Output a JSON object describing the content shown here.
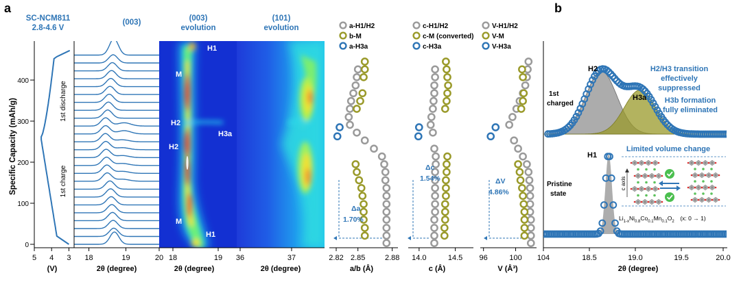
{
  "figure": {
    "panel_a_label": "a",
    "panel_b_label": "b",
    "sample_name": "SC-NCM811",
    "voltage_window": "2.8-4.6 V",
    "stack_title": "(003)",
    "map003_title_line1": "(003)",
    "map003_title_line2": "evolution",
    "map101_title_line1": "(101)",
    "map101_title_line2": "evolution",
    "y_axis_label": "Specific Capacity (mAh/g)",
    "first_charge_label": "1st charge",
    "first_discharge_label": "1st discharge",
    "phase_labels": {
      "h1_top": "H1",
      "m_upper": "M",
      "h2_upper": "H2",
      "h3a": "H3a",
      "h2_lower": "H2",
      "m_lower": "M",
      "h1_bottom": "H1"
    }
  },
  "chart_data": [
    {
      "id": "voltage-profile",
      "type": "line",
      "xlabel": "(V)",
      "x_ticks": [
        "5",
        "4",
        "3"
      ],
      "xlim": [
        5,
        2.7
      ],
      "ylim": [
        -5,
        480
      ],
      "y_ticks": [
        0,
        100,
        200,
        300,
        400
      ],
      "note": "voltage vs specific capacity, first charge and discharge"
    },
    {
      "id": "xrd-stack-003",
      "type": "line",
      "xlabel": "2θ (degree)",
      "x_ticks": [
        "18",
        "19"
      ],
      "xlim": [
        17.6,
        19.9
      ],
      "n_patterns": 25,
      "capacity_spacing": 19.2
    },
    {
      "id": "contour-003",
      "type": "heatmap",
      "xlabel": "2θ (degree)",
      "x_ticks": [
        "20",
        "18",
        "19"
      ],
      "xlim": [
        17.6,
        19.7
      ]
    },
    {
      "id": "contour-101",
      "type": "heatmap",
      "xlabel": "2θ (degree)",
      "x_ticks": [
        "36",
        "37",
        "2.82"
      ],
      "xlim": [
        36.0,
        37.7
      ]
    },
    {
      "id": "lattice-ab",
      "type": "scatter",
      "xlabel": "a/b (Å)",
      "x_ticks": [
        "2.85",
        "2.88"
      ],
      "xlim": [
        2.825,
        2.885
      ],
      "legend": [
        "a-H1/H2",
        "b-M",
        "a-H3a"
      ],
      "change_label": "Δa",
      "change_value": "1.70%",
      "series": [
        {
          "name": "a-H1/H2",
          "x": [
            2.875,
            2.875,
            2.875,
            2.875,
            2.875,
            2.875,
            2.875,
            2.875,
            2.874,
            2.874,
            2.873,
            2.871,
            2.864,
            2.856,
            2.849,
            2.843,
            2.842,
            2.843,
            2.844,
            2.846,
            2.848,
            2.849,
            2.85
          ],
          "y": [
            3,
            21,
            40,
            60,
            79,
            98,
            118,
            137,
            156,
            176,
            195,
            214,
            233,
            253,
            272,
            291,
            310,
            330,
            349,
            368,
            387,
            407,
            426
          ]
        },
        {
          "name": "b-M",
          "x": [
            2.856,
            2.856,
            2.855,
            2.855,
            2.855,
            2.854,
            2.853,
            2.851,
            2.849,
            2.848,
            2.849,
            2.852,
            2.854,
            2.855,
            2.856,
            2.856
          ],
          "y": [
            21,
            40,
            60,
            79,
            98,
            118,
            137,
            156,
            176,
            195,
            330,
            349,
            368,
            407,
            426,
            445
          ]
        },
        {
          "name": "a-H3a",
          "x": [
            2.832,
            2.834
          ],
          "y": [
            263,
            285
          ]
        }
      ]
    },
    {
      "id": "lattice-c",
      "type": "scatter",
      "xlabel": "c (Å)",
      "x_ticks": [
        "14.0",
        "14.5"
      ],
      "xlim": [
        13.85,
        14.75
      ],
      "legend": [
        "c-H1/H2",
        "c-M (converted)",
        "c-H3a"
      ],
      "change_label": "Δc",
      "change_value": "1.54%",
      "series": [
        {
          "name": "c-H1/H2",
          "x": [
            14.21,
            14.21,
            14.21,
            14.21,
            14.22,
            14.22,
            14.22,
            14.22,
            14.22,
            14.22,
            14.23,
            14.23,
            14.21,
            14.19,
            14.16,
            14.17,
            14.19,
            14.2,
            14.21,
            14.21,
            14.22,
            14.22
          ],
          "y": [
            3,
            21,
            40,
            60,
            79,
            98,
            118,
            137,
            156,
            176,
            195,
            214,
            233,
            272,
            291,
            310,
            330,
            349,
            368,
            387,
            407,
            426
          ]
        },
        {
          "name": "c-M (converted)",
          "x": [
            14.35,
            14.35,
            14.36,
            14.36,
            14.36,
            14.37,
            14.37,
            14.37,
            14.38,
            14.38,
            14.39,
            14.36,
            14.38,
            14.39,
            14.4,
            14.39,
            14.38,
            14.37
          ],
          "y": [
            21,
            40,
            60,
            79,
            98,
            118,
            137,
            156,
            176,
            195,
            214,
            330,
            349,
            368,
            387,
            407,
            426,
            445
          ]
        },
        {
          "name": "c-H3a",
          "x": [
            13.99,
            14.0
          ],
          "y": [
            263,
            285
          ]
        }
      ]
    },
    {
      "id": "lattice-v",
      "type": "scatter",
      "xlabel": "V (Å³)",
      "x_ticks": [
        "96",
        "100"
      ],
      "xlim": [
        95.6,
        102.6
      ],
      "legend": [
        "V-H1/H2",
        "V-M",
        "V-H3a"
      ],
      "change_label": "ΔV",
      "change_value": "4.86%",
      "series": [
        {
          "name": "V-H1/H2",
          "x": [
            101.9,
            101.9,
            101.9,
            101.9,
            101.8,
            101.8,
            101.8,
            101.8,
            101.7,
            101.6,
            101.4,
            100.9,
            100.3,
            99.8,
            99.2,
            99.6,
            100.1,
            100.5,
            100.9,
            101.2,
            101.4,
            101.5,
            101.6
          ],
          "y": [
            3,
            21,
            40,
            60,
            79,
            98,
            118,
            137,
            156,
            176,
            195,
            214,
            233,
            253,
            291,
            310,
            330,
            349,
            368,
            387,
            407,
            426,
            445
          ]
        },
        {
          "name": "V-M",
          "x": [
            101.1,
            101.1,
            101.1,
            101.1,
            101.0,
            100.9,
            100.8,
            100.6,
            100.5,
            100.3,
            100.7,
            100.9,
            101.0,
            100.9,
            100.8
          ],
          "y": [
            21,
            40,
            60,
            79,
            98,
            118,
            137,
            156,
            176,
            195,
            330,
            349,
            368,
            407,
            426
          ]
        },
        {
          "name": "V-H3a",
          "x": [
            96.9,
            97.5
          ],
          "y": [
            263,
            285
          ]
        }
      ]
    },
    {
      "id": "panel-b-spectra",
      "type": "line",
      "xlabel": "2θ (degree)",
      "x_ticks": [
        "104",
        "18.5",
        "19.0",
        "19.5",
        "20.0"
      ],
      "xlim": [
        18.0,
        20.0
      ],
      "annotations": {
        "h2": "H2",
        "h3a": "H3a",
        "first_charged_line1": "1st",
        "first_charged_line2": "charged",
        "transition_line1": "H2/H3 transition",
        "transition_line2": "effectively",
        "transition_line3": "suppressed",
        "h3b_line1": "H3b formation",
        "h3b_line2": "fully eliminated",
        "h1": "H1",
        "pristine_line1": "Pristine",
        "pristine_line2": "state",
        "volume_change": "Limited volume change",
        "c_axis": "c axis",
        "formula": "Li1-xNi0.8Co0.1Mn0.1O2",
        "x_range": "(x: 0 → 1)"
      },
      "series": [
        {
          "name": "charged-H2-fit",
          "center": 18.63,
          "width": 0.17,
          "height": 1.0
        },
        {
          "name": "charged-H3a-fit",
          "center": 19.05,
          "width": 0.17,
          "height": 0.7
        },
        {
          "name": "pristine-H1",
          "center": 18.71,
          "width": 0.035,
          "height": 1.0
        }
      ]
    }
  ]
}
